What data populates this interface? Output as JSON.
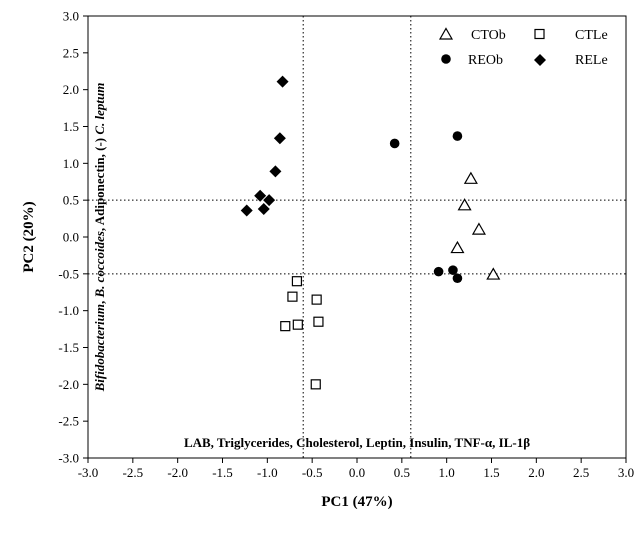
{
  "chart_data": {
    "type": "scatter",
    "xlabel": "PC1 (47%)",
    "ylabel": "PC2 (20%)",
    "xlim": [
      -3.0,
      3.0
    ],
    "ylim": [
      -3.0,
      3.0
    ],
    "x_ticks": [
      "-3.0",
      "-2.5",
      "-2.0",
      "-1.5",
      "-1.0",
      "-0.5",
      "0.0",
      "0.5",
      "1.0",
      "1.5",
      "2.0",
      "2.5",
      "3.0"
    ],
    "y_ticks": [
      "3.0",
      "2.5",
      "2.0",
      "1.5",
      "1.0",
      "0.5",
      "0.0",
      "-0.5",
      "-1.0",
      "-1.5",
      "-2.0",
      "-2.5",
      "-3.0"
    ],
    "grid": false,
    "reference_lines": {
      "x": [
        -0.6,
        0.6
      ],
      "y": [
        0.5,
        -0.5
      ]
    },
    "legend_position": "top-right",
    "series": [
      {
        "name": "CTOb",
        "marker": "triangle-open",
        "points": [
          [
            1.27,
            0.79
          ],
          [
            1.2,
            0.43
          ],
          [
            1.36,
            0.1
          ],
          [
            1.12,
            -0.15
          ],
          [
            1.52,
            -0.51
          ]
        ]
      },
      {
        "name": "CTLe",
        "marker": "square-open",
        "points": [
          [
            -0.67,
            -0.6
          ],
          [
            -0.72,
            -0.81
          ],
          [
            -0.45,
            -0.85
          ],
          [
            -0.8,
            -1.21
          ],
          [
            -0.66,
            -1.19
          ],
          [
            -0.43,
            -1.15
          ],
          [
            -0.46,
            -2.0
          ]
        ]
      },
      {
        "name": "REOb",
        "marker": "circle-filled",
        "points": [
          [
            0.42,
            1.27
          ],
          [
            1.12,
            1.37
          ],
          [
            0.91,
            -0.47
          ],
          [
            1.07,
            -0.45
          ],
          [
            1.12,
            -0.56
          ]
        ]
      },
      {
        "name": "RELe",
        "marker": "diamond-filled",
        "points": [
          [
            -0.83,
            2.11
          ],
          [
            -0.86,
            1.34
          ],
          [
            -0.91,
            0.89
          ],
          [
            -1.08,
            0.56
          ],
          [
            -0.98,
            0.5
          ],
          [
            -1.04,
            0.38
          ],
          [
            -1.23,
            0.36
          ]
        ]
      }
    ],
    "annotations": {
      "bottom": "LAB, Triglycerides, Cholesterol, Leptin, Insulin, TNF-α, IL-1β",
      "left": "Bifidobacterium, B. coccoides, Adiponectin, (-) C. leptum"
    }
  }
}
